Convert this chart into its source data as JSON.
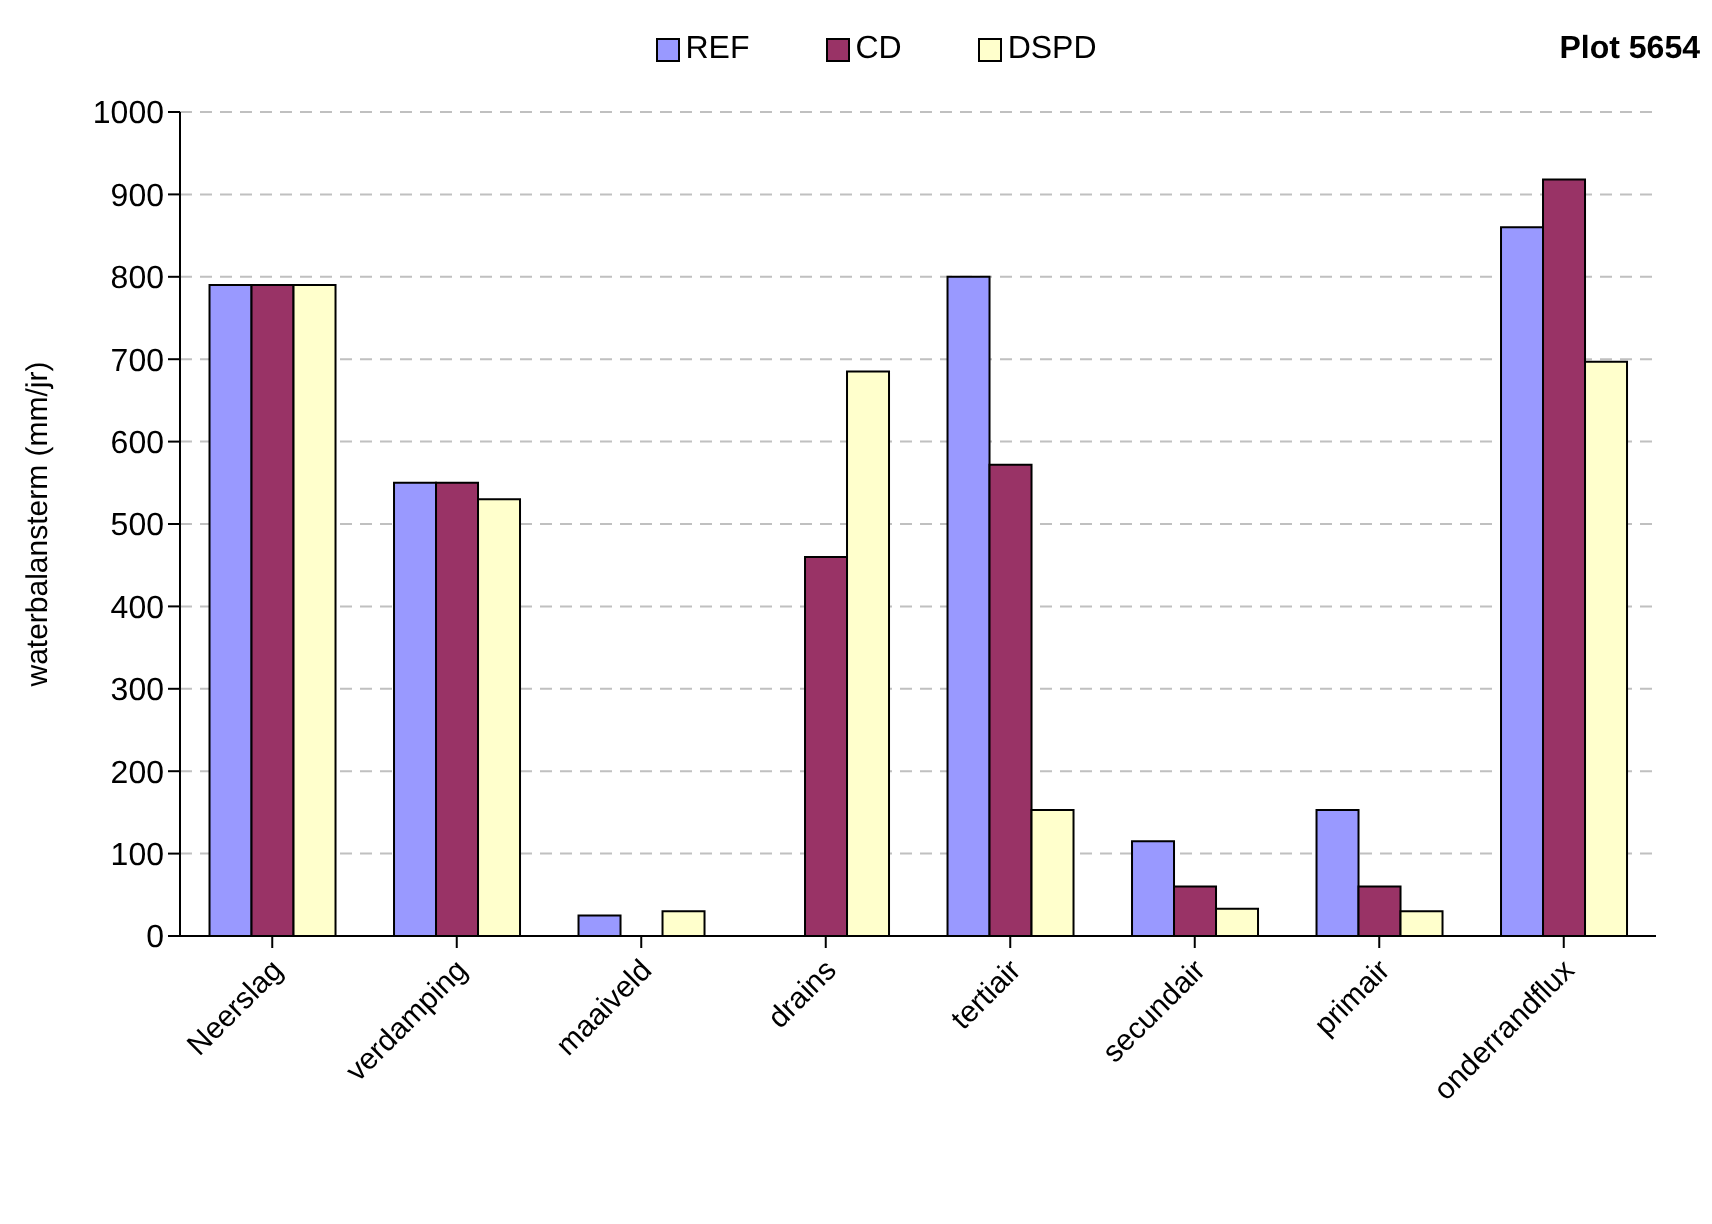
{
  "chart_data": {
    "type": "bar",
    "title": "Plot 5654",
    "ylabel": "waterbalansterm (mm/jr)",
    "categories": [
      "Neerslag",
      "verdamping",
      "maaiveld",
      "drains",
      "tertiair",
      "secundair",
      "primair",
      "onderrandflux"
    ],
    "series": [
      {
        "name": "REF",
        "color": "#9999ff",
        "values": [
          790,
          550,
          25,
          0,
          800,
          115,
          153,
          860
        ]
      },
      {
        "name": "CD",
        "color": "#993366",
        "values": [
          790,
          550,
          0,
          460,
          572,
          60,
          60,
          918
        ]
      },
      {
        "name": "DSPD",
        "color": "#ffffcc",
        "values": [
          790,
          530,
          30,
          685,
          153,
          33,
          30,
          697
        ]
      }
    ],
    "ylim": [
      0,
      1000
    ],
    "yticks": [
      0,
      100,
      200,
      300,
      400,
      500,
      600,
      700,
      800,
      900,
      1000
    ],
    "grid": "y",
    "legend": "top"
  }
}
